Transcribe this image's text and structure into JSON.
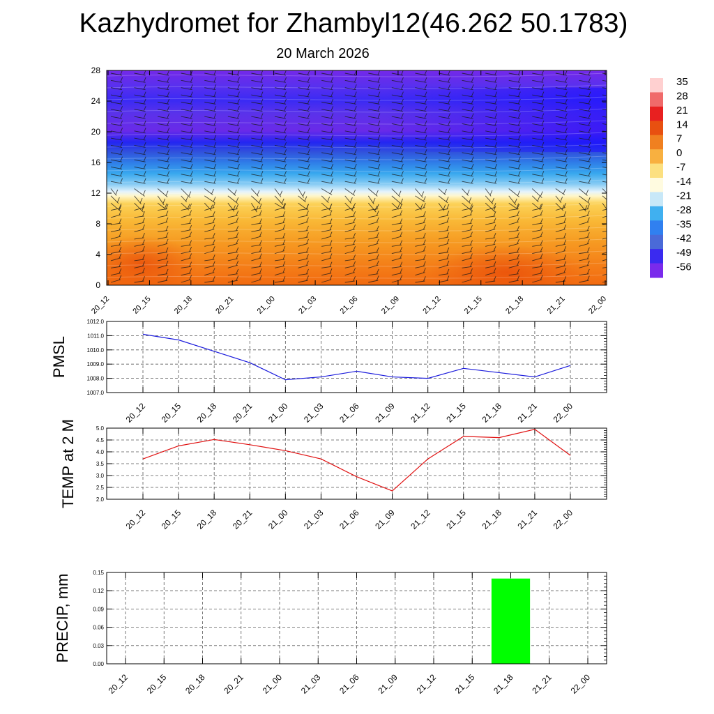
{
  "title": "Kazhydromet for Zhambyl12(46.262 50.1783)",
  "date": "20 March 2026",
  "colors": {
    "pmsl_line": "#1a1adc",
    "temp_line": "#e01010",
    "precip_bar": "#00ff00"
  },
  "colorbar": {
    "labels": [
      "35",
      "28",
      "21",
      "14",
      "7",
      "0",
      "-7",
      "-14",
      "-21",
      "-28",
      "-35",
      "-42",
      "-49",
      "-56"
    ],
    "colors": [
      "#ffd0d0",
      "#f06a6a",
      "#e82020",
      "#e85010",
      "#f08020",
      "#f8b040",
      "#fce080",
      "#fffbe0",
      "#c8e8f8",
      "#40b0f0",
      "#3080f0",
      "#4a6ad8",
      "#3a2af0",
      "#7a2aec"
    ]
  },
  "chart_data": [
    {
      "type": "heatmap",
      "name": "upper-air-cross-section",
      "x_ticks": [
        "20_12",
        "20_15",
        "20_18",
        "20_21",
        "21_00",
        "21_03",
        "21_06",
        "21_09",
        "21_12",
        "21_15",
        "21_18",
        "21_21",
        "22_00"
      ],
      "y_ticks": [
        "0",
        "4",
        "8",
        "12",
        "16",
        "20",
        "24",
        "28"
      ],
      "ylim": [
        0,
        28
      ],
      "description_values": "temperature shading with wind barbs"
    },
    {
      "type": "line",
      "name": "pmsl",
      "ylabel": "PMSL",
      "x": [
        "20_12",
        "20_15",
        "20_18",
        "20_21",
        "21_00",
        "21_03",
        "21_06",
        "21_09",
        "21_12",
        "21_15",
        "21_18",
        "21_21",
        "22_00"
      ],
      "values": [
        1011.1,
        1010.7,
        1009.9,
        1009.1,
        1007.9,
        1008.1,
        1008.5,
        1008.1,
        1008.0,
        1008.7,
        1008.4,
        1008.1,
        1008.9
      ],
      "ylim": [
        1007.0,
        1012.0
      ],
      "y_ticks": [
        "1007.0",
        "1008.0",
        "1009.0",
        "1010.0",
        "1011.0",
        "1012.0"
      ]
    },
    {
      "type": "line",
      "name": "temp-2m",
      "ylabel": "TEMP at 2 M",
      "x": [
        "20_12",
        "20_15",
        "20_18",
        "20_21",
        "21_00",
        "21_03",
        "21_06",
        "21_09",
        "21_12",
        "21_15",
        "21_18",
        "21_21",
        "22_00"
      ],
      "values": [
        3.7,
        4.25,
        4.52,
        4.3,
        4.05,
        3.7,
        2.95,
        2.35,
        3.7,
        4.65,
        4.6,
        4.95,
        3.85
      ],
      "ylim": [
        2.0,
        5.0
      ],
      "y_ticks": [
        "2.0",
        "2.5",
        "3.0",
        "3.5",
        "4.0",
        "4.5",
        "5.0"
      ]
    },
    {
      "type": "bar",
      "name": "precip",
      "ylabel": "PRECIP, mm",
      "x": [
        "20_12",
        "20_15",
        "20_18",
        "20_21",
        "21_00",
        "21_03",
        "21_06",
        "21_09",
        "21_12",
        "21_15",
        "21_18",
        "21_21",
        "22_00"
      ],
      "values": [
        0,
        0,
        0,
        0,
        0,
        0,
        0,
        0,
        0,
        0,
        0.14,
        0,
        0
      ],
      "ylim": [
        0,
        0.15
      ],
      "y_ticks": [
        "0.00",
        "0.03",
        "0.06",
        "0.09",
        "0.12",
        "0.15"
      ]
    }
  ]
}
